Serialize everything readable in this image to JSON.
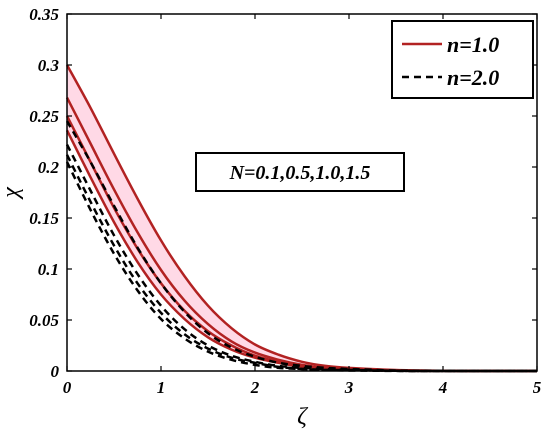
{
  "chart_data": {
    "type": "line",
    "xlabel": "ζ",
    "ylabel": "χ",
    "xlim": [
      0,
      5
    ],
    "ylim": [
      0,
      0.35
    ],
    "xticks": [
      "0",
      "1",
      "2",
      "3",
      "4",
      "5"
    ],
    "yticks": [
      "0",
      "0.05",
      "0.1",
      "0.15",
      "0.2",
      "0.25",
      "0.3",
      "0.35"
    ],
    "grid": false,
    "legend_position": "top-right",
    "legend": [
      {
        "label": "n=1.0",
        "color": "#b22222",
        "style": "solid"
      },
      {
        "label": "n=2.0",
        "color": "#000000",
        "style": "dashed"
      }
    ],
    "annotation": "N=0.1,0.5,1.0,1.5",
    "fill_color": "#ffd9e6",
    "series": [
      {
        "group": "n=1.0",
        "color": "#b22222",
        "style": "solid",
        "x": [
          0,
          0.25,
          0.5,
          0.75,
          1,
          1.25,
          1.5,
          1.75,
          2,
          2.25,
          2.5,
          2.75,
          3,
          3.5,
          4,
          4.5,
          5
        ],
        "values": [
          0.3,
          0.258,
          0.213,
          0.169,
          0.128,
          0.093,
          0.064,
          0.042,
          0.026,
          0.016,
          0.009,
          0.005,
          0.003,
          0.001,
          0.0003,
          0.0001,
          0
        ]
      },
      {
        "group": "n=1.0",
        "color": "#b22222",
        "style": "solid",
        "x": [
          0,
          0.25,
          0.5,
          0.75,
          1,
          1.25,
          1.5,
          1.75,
          2,
          2.25,
          2.5,
          2.75,
          3,
          3.5,
          4,
          4.5,
          5
        ],
        "values": [
          0.268,
          0.223,
          0.178,
          0.136,
          0.099,
          0.069,
          0.046,
          0.029,
          0.018,
          0.011,
          0.006,
          0.003,
          0.002,
          0.0005,
          0.0002,
          0,
          0
        ]
      },
      {
        "group": "n=1.0",
        "color": "#b22222",
        "style": "solid",
        "x": [
          0,
          0.25,
          0.5,
          0.75,
          1,
          1.25,
          1.5,
          1.75,
          2,
          2.25,
          2.5,
          2.75,
          3,
          3.5,
          4,
          4.5,
          5
        ],
        "values": [
          0.25,
          0.205,
          0.16,
          0.12,
          0.086,
          0.059,
          0.039,
          0.025,
          0.015,
          0.009,
          0.005,
          0.003,
          0.002,
          0.0004,
          0.0001,
          0,
          0
        ]
      },
      {
        "group": "n=1.0",
        "color": "#b22222",
        "style": "solid",
        "x": [
          0,
          0.25,
          0.5,
          0.75,
          1,
          1.25,
          1.5,
          1.75,
          2,
          2.25,
          2.5,
          2.75,
          3,
          3.5,
          4,
          4.5,
          5
        ],
        "values": [
          0.236,
          0.19,
          0.146,
          0.107,
          0.075,
          0.051,
          0.033,
          0.021,
          0.013,
          0.008,
          0.004,
          0.002,
          0.001,
          0.0003,
          0.0001,
          0,
          0
        ]
      },
      {
        "group": "n=2.0",
        "color": "#000000",
        "style": "dashed",
        "x": [
          0,
          0.25,
          0.5,
          0.75,
          1,
          1.25,
          1.5,
          1.75,
          2,
          2.25,
          2.5,
          2.75,
          3,
          3.5,
          4,
          4.5,
          5
        ],
        "values": [
          0.245,
          0.205,
          0.162,
          0.121,
          0.086,
          0.058,
          0.037,
          0.023,
          0.014,
          0.008,
          0.005,
          0.003,
          0.002,
          0.0005,
          0.0001,
          0,
          0
        ]
      },
      {
        "group": "n=2.0",
        "color": "#000000",
        "style": "dashed",
        "x": [
          0,
          0.25,
          0.5,
          0.75,
          1,
          1.25,
          1.5,
          1.75,
          2,
          2.25,
          2.5,
          2.75,
          3,
          3.5,
          4,
          4.5,
          5
        ],
        "values": [
          0.222,
          0.177,
          0.133,
          0.095,
          0.064,
          0.041,
          0.025,
          0.015,
          0.009,
          0.005,
          0.003,
          0.002,
          0.001,
          0.0002,
          0,
          0,
          0
        ]
      },
      {
        "group": "n=2.0",
        "color": "#000000",
        "style": "dashed",
        "x": [
          0,
          0.25,
          0.5,
          0.75,
          1,
          1.25,
          1.5,
          1.75,
          2,
          2.25,
          2.5,
          2.75,
          3,
          3.5,
          4,
          4.5,
          5
        ],
        "values": [
          0.212,
          0.166,
          0.123,
          0.086,
          0.057,
          0.036,
          0.022,
          0.013,
          0.008,
          0.004,
          0.002,
          0.001,
          0.001,
          0.0002,
          0,
          0,
          0
        ]
      },
      {
        "group": "n=2.0",
        "color": "#000000",
        "style": "dashed",
        "x": [
          0,
          0.25,
          0.5,
          0.75,
          1,
          1.25,
          1.5,
          1.75,
          2,
          2.25,
          2.5,
          2.75,
          3,
          3.5,
          4,
          4.5,
          5
        ],
        "values": [
          0.205,
          0.158,
          0.115,
          0.079,
          0.051,
          0.032,
          0.019,
          0.011,
          0.006,
          0.003,
          0.002,
          0.001,
          0.0005,
          0.0001,
          0,
          0,
          0
        ]
      }
    ]
  }
}
